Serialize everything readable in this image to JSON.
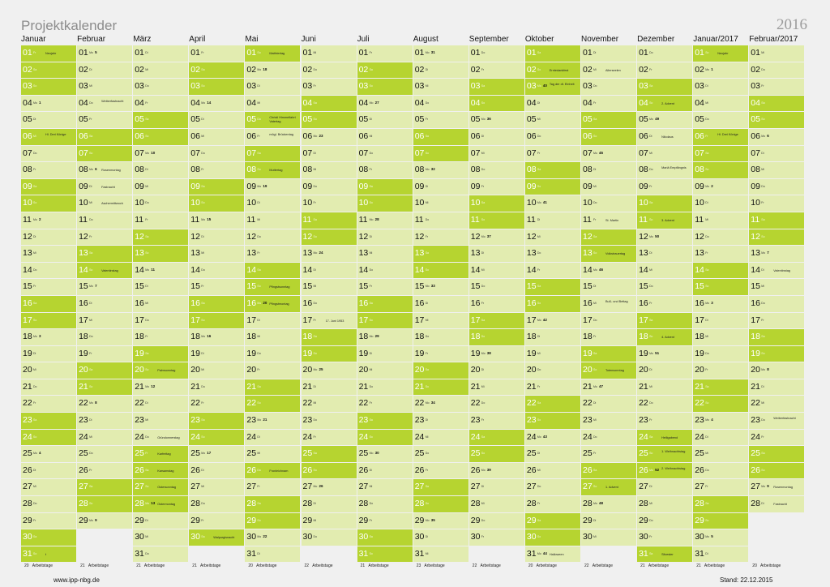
{
  "title": "Projektkalender",
  "year": "2016",
  "footer": {
    "url": "www.ipp-nbg.de",
    "stand": "Stand: 22.12.2015"
  },
  "workdays_label": "Arbeitstage",
  "colors": {
    "weekday_cell": "#e2ecb0",
    "weekend_cell": "#b6d430",
    "background": "#f0f0f0"
  },
  "months": [
    {
      "name": "Januar",
      "start_dow": 4,
      "days": 31,
      "workdays": "20",
      "weeks": {
        "4": "1",
        "11": "2",
        "18": "3",
        "25": "4"
      },
      "notes": {
        "1": "Neujahr",
        "6": "Hl. Drei Könige",
        "31": "t"
      }
    },
    {
      "name": "Februar",
      "start_dow": 0,
      "days": 29,
      "workdays": "21",
      "weeks": {
        "1": "5",
        "8": "6",
        "15": "7",
        "22": "8",
        "29": "9"
      },
      "notes": {
        "4": "Weiberfastnacht",
        "8": "Rosenmontag",
        "9": "Fastnacht",
        "10": "Aschermittwoch",
        "14": "Valentinstag"
      }
    },
    {
      "name": "März",
      "start_dow": 1,
      "days": 31,
      "workdays": "21",
      "weeks": {
        "7": "10",
        "14": "11",
        "21": "12",
        "28": "13"
      },
      "notes": {
        "20": "Palmsonntag",
        "24": "Gründonnerstag",
        "25": "Karfreitag",
        "26": "Karsamstag",
        "27": "Ostersonntag",
        "28": "Ostermontag"
      }
    },
    {
      "name": "April",
      "start_dow": 4,
      "days": 30,
      "workdays": "21",
      "weeks": {
        "4": "14",
        "11": "15",
        "18": "16",
        "25": "17"
      },
      "notes": {
        "30": "Walpurgisnacht"
      }
    },
    {
      "name": "Mai",
      "start_dow": 6,
      "days": 31,
      "workdays": "20",
      "weeks": {
        "2": "18",
        "9": "19",
        "16": "20",
        "23": "21",
        "30": "22"
      },
      "notes": {
        "1": "Maifeiertag",
        "5": "Christi Himmelfahrt Vatertag",
        "6": "mögl. Brückentag",
        "8": "Muttertag",
        "15": "Pfingstsonntag",
        "16": "Pfingstmontag",
        "26": "Fronleichnam"
      }
    },
    {
      "name": "Juni",
      "start_dow": 2,
      "days": 30,
      "workdays": "22",
      "weeks": {
        "6": "23",
        "13": "24",
        "20": "25",
        "27": "26"
      },
      "notes": {
        "17": "17. Juni 1953"
      }
    },
    {
      "name": "Juli",
      "start_dow": 4,
      "days": 31,
      "workdays": "21",
      "weeks": {
        "4": "27",
        "11": "28",
        "18": "29",
        "25": "30"
      },
      "notes": {}
    },
    {
      "name": "August",
      "start_dow": 0,
      "days": 31,
      "workdays": "23",
      "weeks": {
        "1": "31",
        "8": "32",
        "15": "33",
        "22": "34",
        "29": "35"
      },
      "notes": {}
    },
    {
      "name": "September",
      "start_dow": 3,
      "days": 30,
      "workdays": "22",
      "weeks": {
        "5": "36",
        "12": "37",
        "19": "38",
        "26": "39"
      },
      "notes": {}
    },
    {
      "name": "Oktober",
      "start_dow": 5,
      "days": 31,
      "workdays": "20",
      "weeks": {
        "3": "40",
        "10": "41",
        "17": "42",
        "24": "43",
        "31": "44"
      },
      "notes": {
        "2": "Erntedankfest",
        "3": "Tag der dt. Einheit",
        "31": "Halloween"
      }
    },
    {
      "name": "November",
      "start_dow": 1,
      "days": 30,
      "workdays": "22",
      "weeks": {
        "7": "45",
        "14": "46",
        "21": "47",
        "28": "48"
      },
      "notes": {
        "2": "Allerseelen",
        "11": "St. Martin",
        "13": "Volkstrauertag",
        "16": "Buß- und Bettag",
        "20": "Totensonntag",
        "27": "1. Advent"
      }
    },
    {
      "name": "Dezember",
      "start_dow": 3,
      "days": 31,
      "workdays": "21",
      "weeks": {
        "5": "49",
        "12": "50",
        "19": "51",
        "26": "52"
      },
      "notes": {
        "4": "2. Advent",
        "6": "Nikolaus",
        "8": "Mariä Empfängnis",
        "11": "3. Advent",
        "18": "4. Advent",
        "24": "Heiligabend",
        "25": "1. Weihnachtstag",
        "26": "2. Weihnachtstag",
        "31": "Silvester"
      }
    },
    {
      "name": "Januar/2017",
      "start_dow": 6,
      "days": 31,
      "workdays": "21",
      "weeks": {
        "2": "1",
        "9": "2",
        "16": "3",
        "23": "4",
        "30": "5"
      },
      "notes": {
        "1": "Neujahr",
        "6": "Hl. Drei Könige"
      }
    },
    {
      "name": "Februar/2017",
      "start_dow": 2,
      "days": 28,
      "workdays": "20",
      "weeks": {
        "6": "6",
        "13": "7",
        "20": "8",
        "27": "9"
      },
      "notes": {
        "14": "Valentinstag",
        "23": "Weiberfastnacht",
        "27": "Rosenmontag",
        "28": "Fastnacht"
      }
    }
  ],
  "weekday_abbr": [
    "Mo",
    "Di",
    "Mi",
    "Do",
    "Fr",
    "Sa",
    "So"
  ]
}
